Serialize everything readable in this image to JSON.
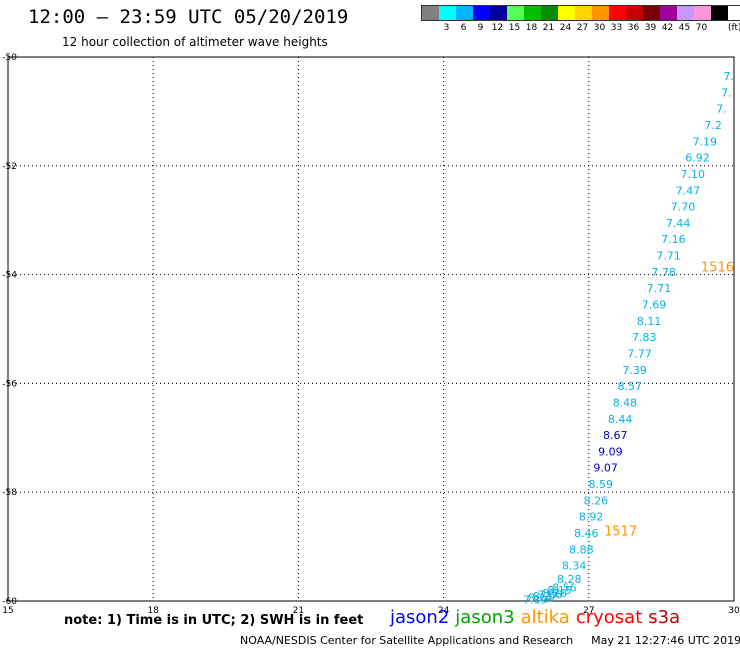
{
  "header": {
    "title": "12:00 — 23:59 UTC 05/20/2019",
    "subtitle": "12 hour collection of altimeter wave heights"
  },
  "legend": {
    "swatches": [
      {
        "label": "",
        "color": "#808080"
      },
      {
        "label": "3",
        "color": "#00ffff"
      },
      {
        "label": "6",
        "color": "#00b4ff"
      },
      {
        "label": "9",
        "color": "#0000ff"
      },
      {
        "label": "12",
        "color": "#0000a0"
      },
      {
        "label": "15",
        "color": "#55ff55"
      },
      {
        "label": "18",
        "color": "#00c000"
      },
      {
        "label": "21",
        "color": "#008c00"
      },
      {
        "label": "24",
        "color": "#ffff00"
      },
      {
        "label": "27",
        "color": "#ffd200"
      },
      {
        "label": "30",
        "color": "#ff9600"
      },
      {
        "label": "33",
        "color": "#ff0000"
      },
      {
        "label": "36",
        "color": "#c80000"
      },
      {
        "label": "39",
        "color": "#780000"
      },
      {
        "label": "42",
        "color": "#a000a0"
      },
      {
        "label": "45",
        "color": "#c896ff"
      },
      {
        "label": "70",
        "color": "#ff96dc"
      },
      {
        "label": "",
        "color": "#000000"
      }
    ],
    "unit": "(ft)"
  },
  "note": "note:  1) Time is in UTC;  2) SWH is in feet",
  "satellites": [
    {
      "name": "jason2",
      "color": "#0000ff"
    },
    {
      "name": "jason3",
      "color": "#00a000"
    },
    {
      "name": "altika",
      "color": "#ff9600"
    },
    {
      "name": "cryosat",
      "color": "#ff0000"
    },
    {
      "name": "s3a",
      "color": "#c80000"
    }
  ],
  "footer": {
    "org": "NOAA/NESDIS Center for Satellite Applications and Research",
    "timestamp": "May 21 12:27:46 UTC 2019"
  },
  "chart_data": {
    "type": "scatter",
    "xlim": [
      15,
      30
    ],
    "ylim": [
      -60,
      -50
    ],
    "xticks": [
      "15",
      "18",
      "21",
      "24",
      "27",
      "30"
    ],
    "yticks": [
      "-50",
      "-52",
      "-54",
      "-56",
      "-58",
      "-60"
    ],
    "grid": true,
    "colors": {
      "cyan": "#00b4e6",
      "blue": "#0000c8",
      "orange": "#ff9600"
    },
    "points": [
      {
        "x": 30.0,
        "y": -50.35,
        "label": "7.",
        "color": "cyan"
      },
      {
        "x": 29.95,
        "y": -50.65,
        "label": "7.",
        "color": "cyan"
      },
      {
        "x": 29.85,
        "y": -50.95,
        "label": "7.",
        "color": "cyan"
      },
      {
        "x": 29.75,
        "y": -51.25,
        "label": "7.2",
        "color": "cyan"
      },
      {
        "x": 29.65,
        "y": -51.55,
        "label": "7.19",
        "color": "cyan"
      },
      {
        "x": 29.5,
        "y": -51.85,
        "label": "6.92",
        "color": "cyan"
      },
      {
        "x": 29.4,
        "y": -52.15,
        "label": "7.10",
        "color": "cyan"
      },
      {
        "x": 29.3,
        "y": -52.45,
        "label": "7.47",
        "color": "cyan"
      },
      {
        "x": 29.2,
        "y": -52.75,
        "label": "7.70",
        "color": "cyan"
      },
      {
        "x": 29.1,
        "y": -53.05,
        "label": "7.44",
        "color": "cyan"
      },
      {
        "x": 29.0,
        "y": -53.35,
        "label": "7.16",
        "color": "cyan"
      },
      {
        "x": 28.9,
        "y": -53.65,
        "label": "7.71",
        "color": "cyan"
      },
      {
        "x": 28.8,
        "y": -53.95,
        "label": "7.78",
        "color": "cyan"
      },
      {
        "x": 28.7,
        "y": -54.25,
        "label": "7.71",
        "color": "cyan"
      },
      {
        "x": 28.6,
        "y": -54.55,
        "label": "7.69",
        "color": "cyan"
      },
      {
        "x": 28.5,
        "y": -54.85,
        "label": "8.11",
        "color": "cyan"
      },
      {
        "x": 28.4,
        "y": -55.15,
        "label": "7.83",
        "color": "cyan"
      },
      {
        "x": 28.3,
        "y": -55.45,
        "label": "7.77",
        "color": "cyan"
      },
      {
        "x": 28.2,
        "y": -55.75,
        "label": "7.39",
        "color": "cyan"
      },
      {
        "x": 28.1,
        "y": -56.05,
        "label": "8.57",
        "color": "cyan"
      },
      {
        "x": 28.0,
        "y": -56.35,
        "label": "8.48",
        "color": "cyan"
      },
      {
        "x": 27.9,
        "y": -56.65,
        "label": "8.44",
        "color": "cyan"
      },
      {
        "x": 27.8,
        "y": -56.95,
        "label": "8.67",
        "color": "blue"
      },
      {
        "x": 27.7,
        "y": -57.25,
        "label": "9.09",
        "color": "blue"
      },
      {
        "x": 27.6,
        "y": -57.55,
        "label": "9.07",
        "color": "blue"
      },
      {
        "x": 27.5,
        "y": -57.85,
        "label": "8.59",
        "color": "cyan"
      },
      {
        "x": 27.4,
        "y": -58.15,
        "label": "8.26",
        "color": "cyan"
      },
      {
        "x": 27.3,
        "y": -58.45,
        "label": "8.92",
        "color": "cyan"
      },
      {
        "x": 27.2,
        "y": -58.75,
        "label": "8.46",
        "color": "cyan"
      },
      {
        "x": 27.1,
        "y": -59.05,
        "label": "8.88",
        "color": "cyan"
      },
      {
        "x": 26.95,
        "y": -59.35,
        "label": "8.34",
        "color": "cyan"
      },
      {
        "x": 26.85,
        "y": -59.6,
        "label": "8.28",
        "color": "cyan"
      },
      {
        "x": 26.75,
        "y": -59.75,
        "label": "8.56",
        "color": "cyan"
      },
      {
        "x": 26.65,
        "y": -59.8,
        "label": "8.15",
        "color": "cyan"
      },
      {
        "x": 26.55,
        "y": -59.85,
        "label": "8.26",
        "color": "cyan"
      },
      {
        "x": 26.45,
        "y": -59.88,
        "label": "7.86",
        "color": "cyan"
      },
      {
        "x": 26.35,
        "y": -59.91,
        "label": "8.27",
        "color": "cyan"
      },
      {
        "x": 26.25,
        "y": -59.94,
        "label": "8.24",
        "color": "cyan"
      },
      {
        "x": 26.15,
        "y": -59.97,
        "label": "7.19",
        "color": "cyan"
      }
    ],
    "annotations": [
      {
        "x": 30.0,
        "y": -53.85,
        "label": "1516",
        "color": "orange"
      },
      {
        "x": 28.0,
        "y": -58.7,
        "label": "1517",
        "color": "orange"
      }
    ]
  }
}
